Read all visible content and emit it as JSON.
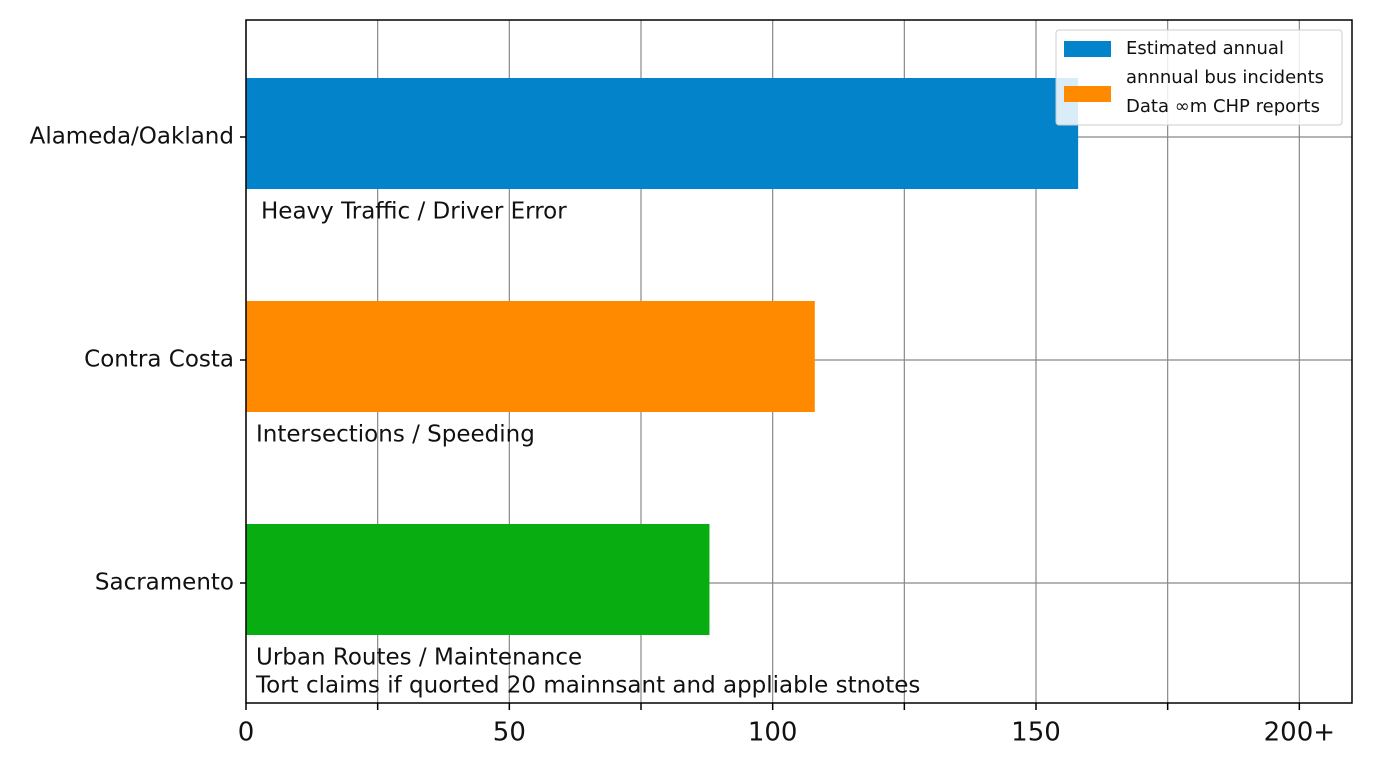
{
  "chart_data": {
    "type": "barh",
    "categories": [
      "Alameda/Oakland",
      "Contra Costa",
      "Sacramento"
    ],
    "values": [
      158,
      108,
      88
    ],
    "colors": [
      "#0383c9",
      "#ff8a00",
      "#08ad12"
    ],
    "annotations": [
      [
        "Heavy Traffic / Driver Error"
      ],
      [
        "Intersections / Speeding"
      ],
      [
        "Urban Routes / Maintenance",
        "Tort claims if quorted 20 mainnsant and appliable stnotes"
      ]
    ],
    "xlim": [
      0,
      210
    ],
    "xticks": [
      0,
      50,
      100,
      150,
      {
        "value": 200,
        "label": "200+"
      }
    ],
    "minor_xticks": [
      25,
      75,
      125,
      175
    ],
    "grid": true,
    "legend": [
      {
        "color": "#0383c9",
        "lines": [
          "Estimated annual",
          "annnual bus incidents"
        ]
      },
      {
        "color": "#ff8a00",
        "lines": [
          "Data ∞m CHP reports"
        ]
      }
    ],
    "legend_position": "upper right"
  }
}
